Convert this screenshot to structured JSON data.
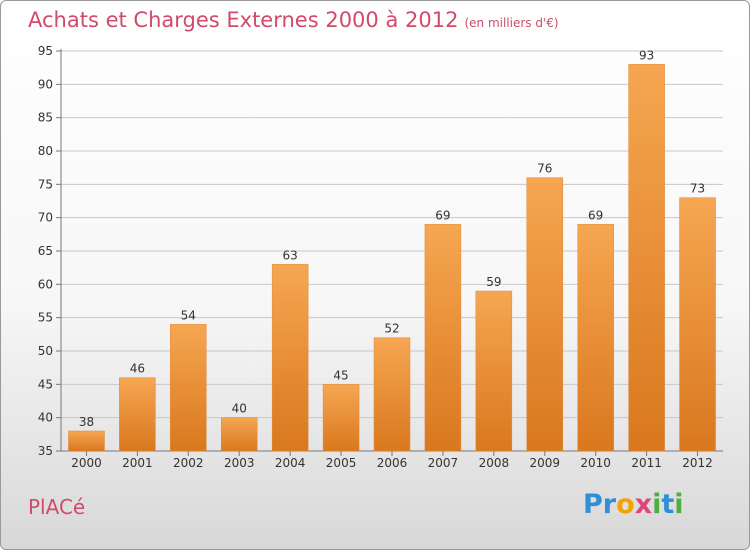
{
  "header": {
    "title": "Achats et Charges Externes 2000 à 2012",
    "unit": "(en milliers d'€)"
  },
  "footer": {
    "commune": "PlACé",
    "brand_letters": [
      {
        "ch": "P",
        "color": "#2f8fd6"
      },
      {
        "ch": "r",
        "color": "#2f8fd6"
      },
      {
        "ch": "o",
        "color": "#f2a300"
      },
      {
        "ch": "x",
        "color": "#e0457a"
      },
      {
        "ch": "i",
        "color": "#4caf3f"
      },
      {
        "ch": "t",
        "color": "#2f8fd6"
      },
      {
        "ch": "i",
        "color": "#4caf3f"
      }
    ]
  },
  "colors": {
    "title": "#d14a6a",
    "bar_top": "#f6a652",
    "bar_bottom": "#d9781e",
    "grid": "#c8c8c8"
  },
  "chart_data": {
    "type": "bar",
    "title": "Achats et Charges Externes 2000 à 2012",
    "subtitle": "(en milliers d'€)",
    "categories": [
      "2000",
      "2001",
      "2002",
      "2003",
      "2004",
      "2005",
      "2006",
      "2007",
      "2008",
      "2009",
      "2010",
      "2011",
      "2012"
    ],
    "values": [
      38,
      46,
      54,
      40,
      63,
      45,
      52,
      69,
      59,
      76,
      69,
      93,
      73
    ],
    "ylim": [
      35,
      95
    ],
    "yticks": [
      35,
      40,
      45,
      50,
      55,
      60,
      65,
      70,
      75,
      80,
      85,
      90,
      95
    ],
    "grid": true,
    "data_labels": true
  }
}
